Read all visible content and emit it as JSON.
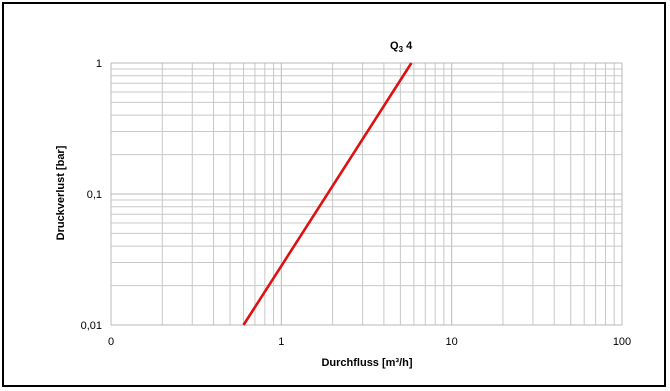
{
  "chart_data": {
    "type": "line",
    "x_scale": "log",
    "y_scale": "log",
    "xlim": [
      0.1,
      100
    ],
    "ylim": [
      0.01,
      1
    ],
    "x_ticks": [
      0.1,
      1,
      10,
      100
    ],
    "x_tick_labels": [
      "0",
      "1",
      "10",
      "100"
    ],
    "y_ticks": [
      0.01,
      0.1,
      1
    ],
    "y_tick_labels": [
      "0,01",
      "0,1",
      "1"
    ],
    "xlabel": "Durchfluss [m³/h]",
    "ylabel": "Druckverlust [bar]",
    "grid": true,
    "series": [
      {
        "name": "Q3 4",
        "label_main": "Q",
        "label_sub": "3",
        "label_rest": " 4",
        "color": "#dd1111",
        "points": [
          {
            "x": 0.6,
            "y": 0.01
          },
          {
            "x": 5.8,
            "y": 1
          }
        ]
      }
    ]
  }
}
